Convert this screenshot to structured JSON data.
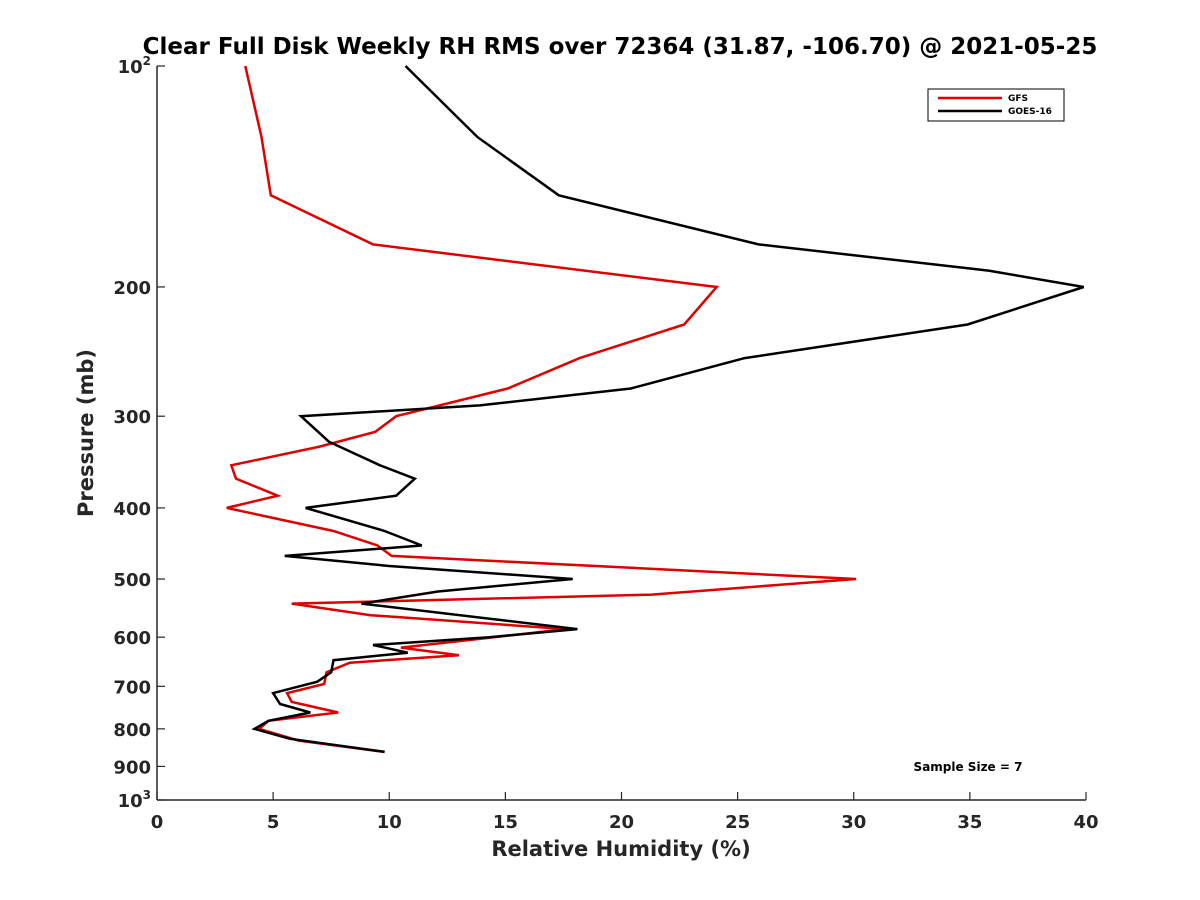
{
  "chart_data": {
    "type": "line",
    "title": "Clear Full Disk Weekly RH RMS over 72364 (31.87, -106.70) @ 2021-05-25",
    "xlabel": "Relative Humidity (%)",
    "ylabel": "Pressure (mb)",
    "xlim": [
      0,
      40
    ],
    "ylim": [
      100,
      1000
    ],
    "yscale": "log",
    "yreversed": true,
    "grid": false,
    "legend_position": "top-right",
    "x_ticks": [
      0,
      5,
      10,
      15,
      20,
      25,
      30,
      35,
      40
    ],
    "y_ticks": [
      {
        "value": 100,
        "base": "10",
        "exp": "2"
      },
      {
        "value": 200,
        "text": "200"
      },
      {
        "value": 300,
        "text": "300"
      },
      {
        "value": 400,
        "text": "400"
      },
      {
        "value": 500,
        "text": "500"
      },
      {
        "value": 600,
        "text": "600"
      },
      {
        "value": 700,
        "text": "700"
      },
      {
        "value": 800,
        "text": "800"
      },
      {
        "value": 900,
        "text": "900"
      },
      {
        "value": 1000,
        "base": "10",
        "exp": "3"
      }
    ],
    "series": [
      {
        "name": "GFS",
        "color": "#e00000",
        "points": [
          [
            3.8,
            100
          ],
          [
            4.5,
            125
          ],
          [
            4.9,
            150
          ],
          [
            9.3,
            175
          ],
          [
            24.1,
            200
          ],
          [
            22.7,
            225
          ],
          [
            18.2,
            250
          ],
          [
            15.1,
            275
          ],
          [
            10.3,
            300
          ],
          [
            9.4,
            315
          ],
          [
            7.0,
            330
          ],
          [
            3.2,
            350
          ],
          [
            3.4,
            365
          ],
          [
            5.2,
            385
          ],
          [
            3.0,
            400
          ],
          [
            7.6,
            430
          ],
          [
            9.5,
            450
          ],
          [
            10.1,
            465
          ],
          [
            30.1,
            500
          ],
          [
            21.3,
            525
          ],
          [
            5.8,
            540
          ],
          [
            9.2,
            560
          ],
          [
            17.6,
            585
          ],
          [
            14.5,
            600
          ],
          [
            10.5,
            620
          ],
          [
            13.0,
            635
          ],
          [
            8.3,
            650
          ],
          [
            7.3,
            670
          ],
          [
            7.2,
            695
          ],
          [
            5.6,
            715
          ],
          [
            5.8,
            735
          ],
          [
            7.8,
            760
          ],
          [
            4.8,
            780
          ],
          [
            4.4,
            800
          ],
          [
            6.1,
            830
          ],
          [
            9.8,
            860
          ]
        ]
      },
      {
        "name": "GOES-16",
        "color": "#000000",
        "points": [
          [
            10.7,
            100
          ],
          [
            13.8,
            125
          ],
          [
            17.3,
            150
          ],
          [
            25.9,
            175
          ],
          [
            35.8,
            190
          ],
          [
            39.9,
            200
          ],
          [
            34.9,
            225
          ],
          [
            25.3,
            250
          ],
          [
            20.4,
            275
          ],
          [
            13.9,
            290
          ],
          [
            6.2,
            300
          ],
          [
            7.4,
            325
          ],
          [
            9.6,
            350
          ],
          [
            11.1,
            365
          ],
          [
            10.3,
            385
          ],
          [
            6.4,
            400
          ],
          [
            9.8,
            430
          ],
          [
            11.4,
            450
          ],
          [
            5.5,
            465
          ],
          [
            10.0,
            480
          ],
          [
            17.9,
            500
          ],
          [
            12.1,
            520
          ],
          [
            8.8,
            540
          ],
          [
            18.1,
            585
          ],
          [
            14.3,
            600
          ],
          [
            9.3,
            615
          ],
          [
            10.8,
            630
          ],
          [
            7.6,
            645
          ],
          [
            7.5,
            670
          ],
          [
            6.9,
            690
          ],
          [
            5.0,
            715
          ],
          [
            5.3,
            740
          ],
          [
            6.6,
            760
          ],
          [
            4.8,
            780
          ],
          [
            4.2,
            800
          ],
          [
            5.7,
            825
          ],
          [
            9.8,
            860
          ]
        ]
      }
    ],
    "annotation": "Sample Size = 7"
  }
}
